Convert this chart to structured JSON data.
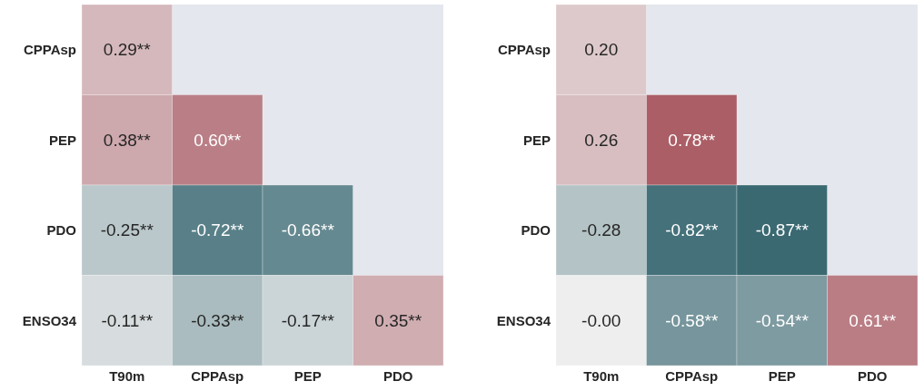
{
  "chart_data": [
    {
      "type": "heatmap",
      "categories": [
        "T90m",
        "CPPAsp",
        "PEP",
        "PDO"
      ],
      "y_categories": [
        "CPPAsp",
        "PEP",
        "PDO",
        "ENSO34"
      ],
      "cells": [
        [
          0.29,
          null,
          null,
          null
        ],
        [
          0.38,
          0.6,
          null,
          null
        ],
        [
          -0.25,
          -0.72,
          -0.66,
          null
        ],
        [
          -0.11,
          -0.33,
          -0.17,
          0.35
        ]
      ],
      "cell_labels": [
        [
          "0.29**",
          null,
          null,
          null
        ],
        [
          "0.38**",
          "0.60**",
          null,
          null
        ],
        [
          "-0.25**",
          "-0.72**",
          "-0.66**",
          null
        ],
        [
          "-0.11**",
          "-0.33**",
          "-0.17**",
          "0.35**"
        ]
      ]
    },
    {
      "type": "heatmap",
      "categories": [
        "T90m",
        "CPPAsp",
        "PEP",
        "PDO"
      ],
      "y_categories": [
        "CPPAsp",
        "PEP",
        "PDO",
        "ENSO34"
      ],
      "cells": [
        [
          0.2,
          null,
          null,
          null
        ],
        [
          0.26,
          0.78,
          null,
          null
        ],
        [
          -0.28,
          -0.82,
          -0.87,
          null
        ],
        [
          -0.0,
          -0.58,
          -0.54,
          0.61
        ]
      ],
      "cell_labels": [
        [
          "0.20",
          null,
          null,
          null
        ],
        [
          "0.26",
          "0.78**",
          null,
          null
        ],
        [
          "-0.28",
          "-0.82**",
          "-0.87**",
          null
        ],
        [
          "-0.00",
          "-0.58**",
          "-0.54**",
          "0.61**"
        ]
      ]
    }
  ]
}
